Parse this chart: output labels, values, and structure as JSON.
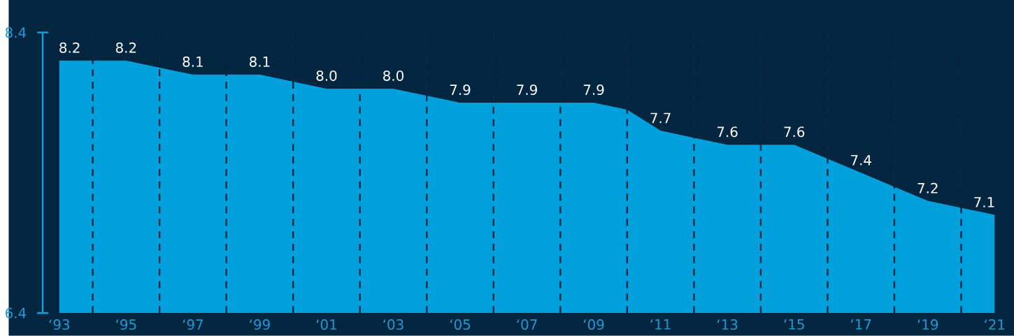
{
  "chart_data": {
    "type": "area",
    "categories": [
      "‘93",
      null,
      "‘95",
      null,
      "‘97",
      null,
      "‘99",
      null,
      "‘01",
      null,
      "‘03",
      null,
      "‘05",
      null,
      "‘07",
      null,
      "‘09",
      null,
      "‘11",
      null,
      "‘13",
      null,
      "‘15",
      null,
      "‘17",
      null,
      "‘19",
      null,
      "‘21"
    ],
    "series": [
      {
        "color": "#00a0dc",
        "values": [
          8.2,
          8.2,
          8.2,
          8.15,
          8.1,
          8.1,
          8.1,
          8.05,
          8.0,
          8.0,
          8.0,
          7.95,
          7.9,
          7.9,
          7.9,
          7.9,
          7.9,
          7.85,
          7.7,
          7.65,
          7.6,
          7.6,
          7.6,
          7.5,
          7.4,
          7.3,
          7.2,
          7.15,
          7.1
        ],
        "value_labels": [
          "8.2",
          null,
          "8.2",
          null,
          "8.1",
          null,
          "8.1",
          null,
          "8.0",
          null,
          "8.0",
          null,
          "7.9",
          null,
          "7.9",
          null,
          "7.9",
          null,
          "7.7",
          null,
          "7.6",
          null,
          "7.6",
          null,
          "7.4",
          null,
          "7.2",
          null,
          "7.1"
        ]
      }
    ],
    "ylim": [
      6.4,
      8.4
    ],
    "yticks": [
      6.4,
      8.4
    ],
    "grid": "x"
  }
}
